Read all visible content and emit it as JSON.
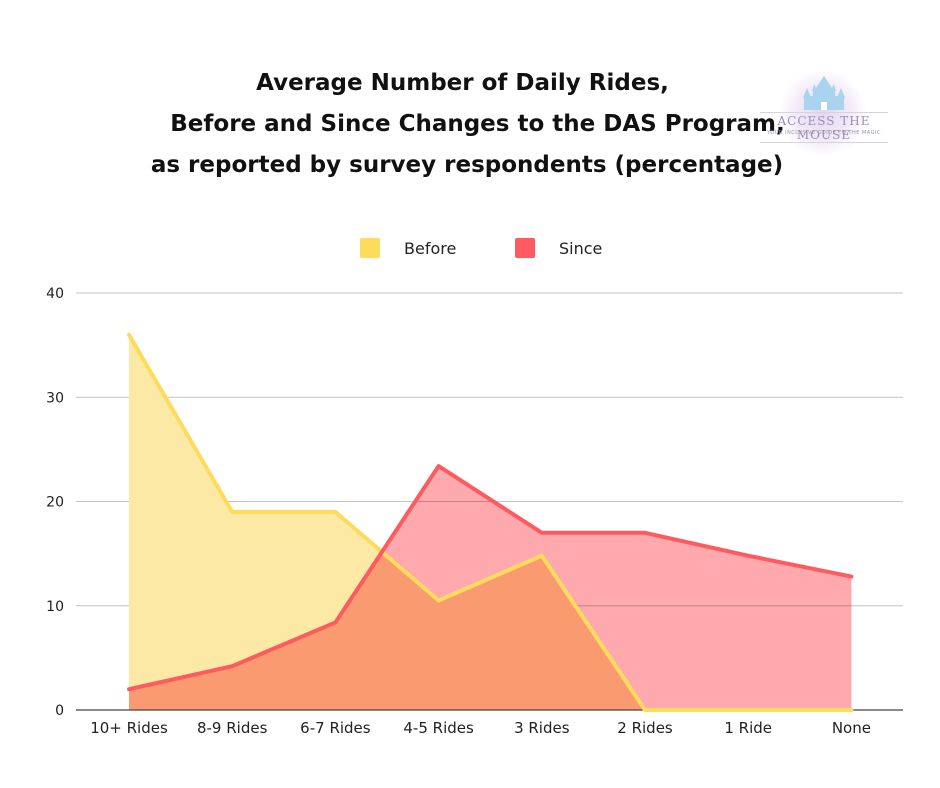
{
  "chart_data": {
    "type": "area",
    "title": [
      "Average Number of Daily Rides,",
      "Before and Since Changes to the DAS Program,",
      "as reported by survey respondents (percentage)"
    ],
    "categories": [
      "10+ Rides",
      "8-9 Rides",
      "6-7 Rides",
      "4-5 Rides",
      "3 Rides",
      "2 Rides",
      "1 Ride",
      "None"
    ],
    "series": [
      {
        "name": "Before",
        "values": [
          36,
          19,
          19,
          10.5,
          14.8,
          0,
          0,
          0
        ],
        "color": "#FDDC5C",
        "fill": "#FCE9A6"
      },
      {
        "name": "Since",
        "values": [
          2,
          4.2,
          8.4,
          23.4,
          17,
          17,
          14.8,
          12.8
        ],
        "color": "#FF5A5F",
        "fill": "#FDA9AD"
      }
    ],
    "ylim": [
      0,
      40
    ],
    "yticks": [
      0,
      10,
      20,
      30,
      40
    ],
    "grid": true,
    "legend_position": "top"
  },
  "logo": {
    "name": "ACCESS THE MOUSE",
    "tagline": "YOUR INCLUSIVE GUIDE TO THE MAGIC"
  }
}
